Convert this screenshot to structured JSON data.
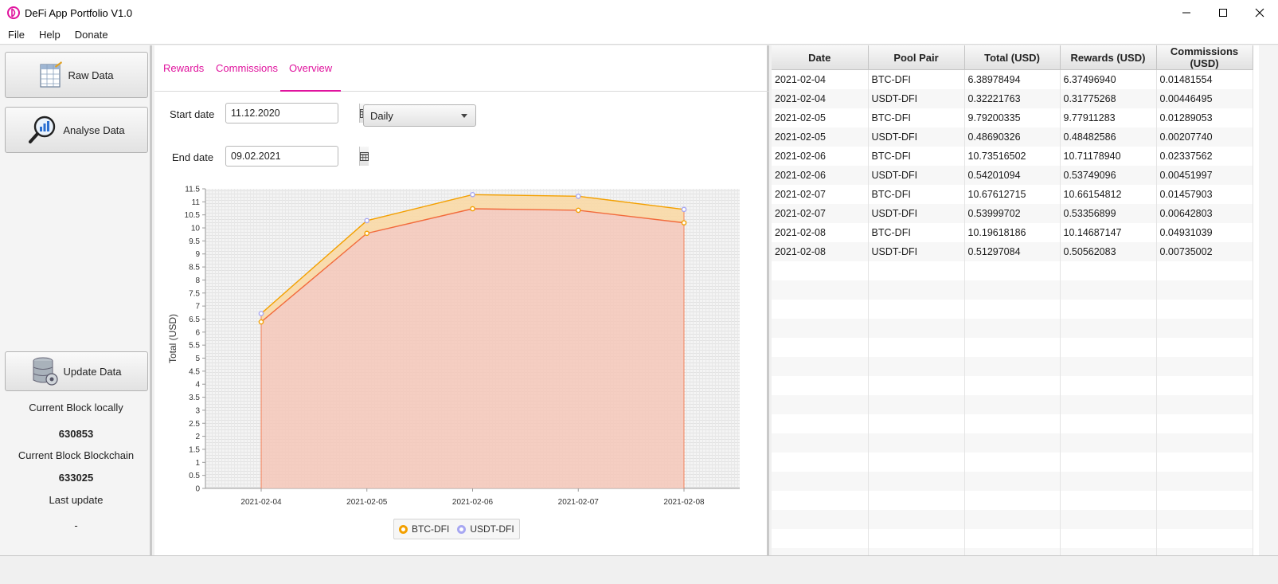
{
  "window": {
    "title": "DeFi App Portfolio V1.0"
  },
  "menu": [
    "File",
    "Help",
    "Donate"
  ],
  "sidebar": {
    "raw_data": "Raw Data",
    "analyse_data": "Analyse Data",
    "update_data": "Update Data",
    "current_block_local_label": "Current Block locally",
    "current_block_local": "630853",
    "current_block_chain_label": "Current Block Blockchain",
    "current_block_chain": "633025",
    "last_update_label": "Last update",
    "last_update": "-"
  },
  "tabs": [
    "Rewards",
    "Commissions",
    "Overview"
  ],
  "active_tab": "Overview",
  "filters": {
    "start_label": "Start date",
    "start_value": "11.12.2020",
    "end_label": "End date",
    "end_value": "09.02.2021",
    "interval": "Daily"
  },
  "chart_data": {
    "type": "area",
    "stacked": true,
    "ylabel": "Total (USD)",
    "ylim": [
      0,
      11.5
    ],
    "ytick_step": 0.5,
    "categories": [
      "2021-02-04",
      "2021-02-05",
      "2021-02-06",
      "2021-02-07",
      "2021-02-08"
    ],
    "series": [
      {
        "name": "BTC-DFI",
        "values": [
          6.38978494,
          9.79200335,
          10.73516502,
          10.67612715,
          10.19618186
        ]
      },
      {
        "name": "USDT-DFI",
        "values": [
          0.32221763,
          0.48690326,
          0.54201094,
          0.53999702,
          0.51297084
        ]
      }
    ],
    "legend": "bottom",
    "colors": {
      "BTC-DFI": "#f3a000",
      "USDT-DFI": "#a7a7f2",
      "base_fill": "#f4c7b8",
      "base_line": "#f26b3c",
      "top_fill": "#f9d9a6"
    }
  },
  "table": {
    "columns": [
      "Date",
      "Pool Pair",
      "Total (USD)",
      "Rewards (USD)",
      "Commissions (USD)"
    ],
    "rows": [
      [
        "2021-02-04",
        "BTC-DFI",
        "6.38978494",
        "6.37496940",
        "0.01481554"
      ],
      [
        "2021-02-04",
        "USDT-DFI",
        "0.32221763",
        "0.31775268",
        "0.00446495"
      ],
      [
        "2021-02-05",
        "BTC-DFI",
        "9.79200335",
        "9.77911283",
        "0.01289053"
      ],
      [
        "2021-02-05",
        "USDT-DFI",
        "0.48690326",
        "0.48482586",
        "0.00207740"
      ],
      [
        "2021-02-06",
        "BTC-DFI",
        "10.73516502",
        "10.71178940",
        "0.02337562"
      ],
      [
        "2021-02-06",
        "USDT-DFI",
        "0.54201094",
        "0.53749096",
        "0.00451997"
      ],
      [
        "2021-02-07",
        "BTC-DFI",
        "10.67612715",
        "10.66154812",
        "0.01457903"
      ],
      [
        "2021-02-07",
        "USDT-DFI",
        "0.53999702",
        "0.53356899",
        "0.00642803"
      ],
      [
        "2021-02-08",
        "BTC-DFI",
        "10.19618186",
        "10.14687147",
        "0.04931039"
      ],
      [
        "2021-02-08",
        "USDT-DFI",
        "0.51297084",
        "0.50562083",
        "0.00735002"
      ]
    ]
  },
  "colors": {
    "accent": "#e0149e"
  }
}
